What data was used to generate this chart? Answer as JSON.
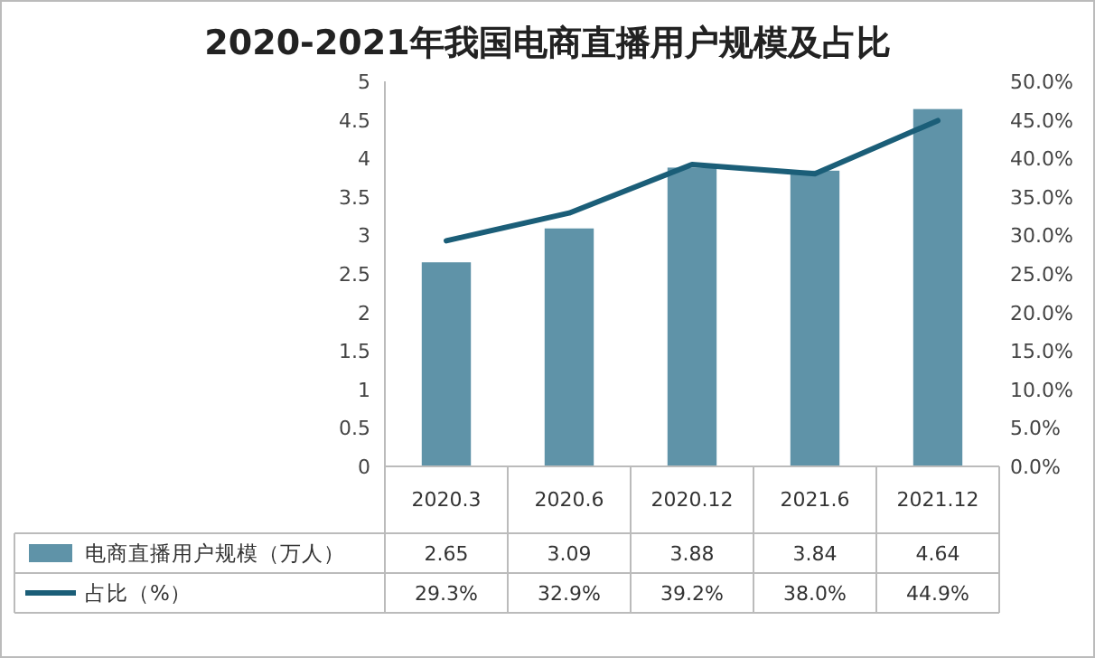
{
  "chart_data": {
    "type": "bar",
    "title": "2020-2021年我国电商直播用户规模及占比",
    "categories": [
      "2020.3",
      "2020.6",
      "2020.12",
      "2021.6",
      "2021.12"
    ],
    "series": [
      {
        "name": "电商直播用户规模（万人）",
        "color": "#5f93a8",
        "values": [
          2.65,
          3.09,
          3.88,
          3.84,
          4.64
        ],
        "value_labels": [
          "2.65",
          "3.09",
          "3.88",
          "3.84",
          "4.64"
        ]
      },
      {
        "name": "占比（%）",
        "type": "line",
        "axis": "y2",
        "color": "#1b5e78",
        "values": [
          29.3,
          32.9,
          39.2,
          38.0,
          44.9
        ],
        "value_labels": [
          "29.3%",
          "32.9%",
          "39.2%",
          "38.0%",
          "44.9%"
        ]
      }
    ],
    "ylim": [
      0,
      5
    ],
    "yticks": [
      0,
      0.5,
      1,
      1.5,
      2,
      2.5,
      3,
      3.5,
      4,
      4.5,
      5
    ],
    "y2lim": [
      0,
      50
    ],
    "y2ticks": [
      {
        "value": 0,
        "label": "0.0%"
      },
      {
        "value": 5,
        "label": "5.0%"
      },
      {
        "value": 10,
        "label": "10.0%"
      },
      {
        "value": 15,
        "label": "15.0%"
      },
      {
        "value": 20,
        "label": "20.0%"
      },
      {
        "value": 25,
        "label": "25.0%"
      },
      {
        "value": 30,
        "label": "30.0%"
      },
      {
        "value": 35,
        "label": "35.0%"
      },
      {
        "value": 40,
        "label": "40.0%"
      },
      {
        "value": 45,
        "label": "45.0%"
      },
      {
        "value": 50,
        "label": "50.0%"
      }
    ],
    "legend": "bottom",
    "marker": "none"
  }
}
